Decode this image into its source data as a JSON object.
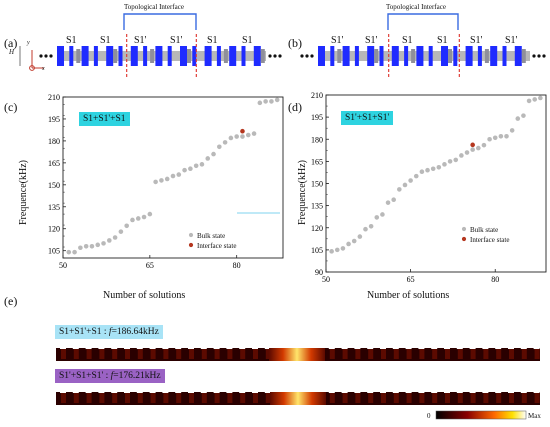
{
  "panels": {
    "a": "(a)",
    "b": "(b)",
    "c": "(c)",
    "d": "(d)",
    "e": "(e)"
  },
  "structure_a": {
    "interface_label": "Topological Interface",
    "segments": [
      "S1",
      "S1",
      "S1'",
      "S1'",
      "S1",
      "S1"
    ],
    "axes": {
      "y": "y",
      "x": "x",
      "height": "H"
    }
  },
  "structure_b": {
    "interface_label": "Topological Interface",
    "segments": [
      "S1'",
      "S1'",
      "S1",
      "S1",
      "S1'",
      "S1'"
    ]
  },
  "colors": {
    "block": "#1f2bff",
    "gray": "#b8b8b8",
    "interface": "#3a6be0",
    "dashed": "#e0403a",
    "bulk": "#b9b9b9",
    "interface_point": "#b5371f",
    "tag_cyan": "#2ed3e0",
    "tag_purple": "#9a62c4"
  },
  "chart_data": [
    {
      "type": "scatter",
      "panel": "c",
      "tag": "S1+S1'+S1",
      "xlabel": "Number of solutions",
      "ylabel": "Frequence(kHz)",
      "xlim": [
        50,
        88
      ],
      "ylim": [
        100,
        210
      ],
      "xticks": [
        "50",
        "65",
        "80"
      ],
      "yticks": [
        "105",
        "120",
        "135",
        "150",
        "165",
        "180",
        "195",
        "210"
      ],
      "legend": {
        "bulk": "Bulk state",
        "interface": "Interface state"
      },
      "series": [
        {
          "name": "Bulk state",
          "x": [
            51,
            52,
            53,
            54,
            55,
            56,
            57,
            58,
            59,
            60,
            61,
            62,
            63,
            64,
            65,
            66,
            67,
            68,
            69,
            70,
            71,
            72,
            73,
            74,
            75,
            76,
            77,
            78,
            79,
            80,
            81,
            82,
            83,
            84,
            85,
            86,
            87
          ],
          "y": [
            104,
            104,
            107,
            108,
            108,
            109,
            110,
            112,
            114,
            118,
            122,
            126,
            127,
            128,
            130,
            152,
            153,
            154,
            156,
            157,
            160,
            161,
            163,
            164,
            168,
            171,
            176,
            179,
            182,
            183,
            183,
            184,
            185,
            206,
            207,
            207,
            208
          ]
        },
        {
          "name": "Interface state",
          "x": [
            81
          ],
          "y": [
            186.64
          ]
        }
      ]
    },
    {
      "type": "scatter",
      "panel": "d",
      "tag": "S1'+S1+S1'",
      "xlabel": "Number of solutions",
      "ylabel": "Frequence(kHz)",
      "xlim": [
        50,
        89
      ],
      "ylim": [
        90,
        210
      ],
      "xticks": [
        "50",
        "65",
        "80"
      ],
      "yticks": [
        "90",
        "105",
        "120",
        "135",
        "150",
        "165",
        "180",
        "195",
        "210"
      ],
      "legend": {
        "bulk": "Bulk state",
        "interface": "Interface state"
      },
      "series": [
        {
          "name": "Bulk state",
          "x": [
            51,
            52,
            53,
            54,
            55,
            56,
            57,
            58,
            59,
            60,
            61,
            62,
            63,
            64,
            65,
            66,
            67,
            68,
            69,
            70,
            71,
            72,
            73,
            74,
            75,
            76,
            77,
            78,
            79,
            80,
            81,
            82,
            83,
            84,
            85,
            86,
            87,
            88
          ],
          "y": [
            104,
            105,
            106,
            109,
            111,
            114,
            119,
            121,
            127,
            129,
            137,
            139,
            146,
            149,
            152,
            155,
            158,
            159,
            160,
            161,
            163,
            165,
            166,
            169,
            171,
            173,
            174,
            176,
            180,
            181,
            182,
            182,
            186,
            194,
            196,
            206,
            207,
            208
          ]
        },
        {
          "name": "Interface state",
          "x": [
            76
          ],
          "y": [
            176.21
          ]
        }
      ]
    }
  ],
  "field_maps": [
    {
      "label": "S1+S1'+S1 : f=186.64kHz",
      "prefix": "S1+S1'+S1 : ",
      "f": "f",
      "value": "=186.64kHz"
    },
    {
      "label": "S1'+S1+S1' : f=176.21kHz",
      "prefix": "S1'+S1+S1' : ",
      "f": "f",
      "value": "=176.21kHz"
    }
  ],
  "colorbar": {
    "min": "0",
    "max": "Max"
  }
}
